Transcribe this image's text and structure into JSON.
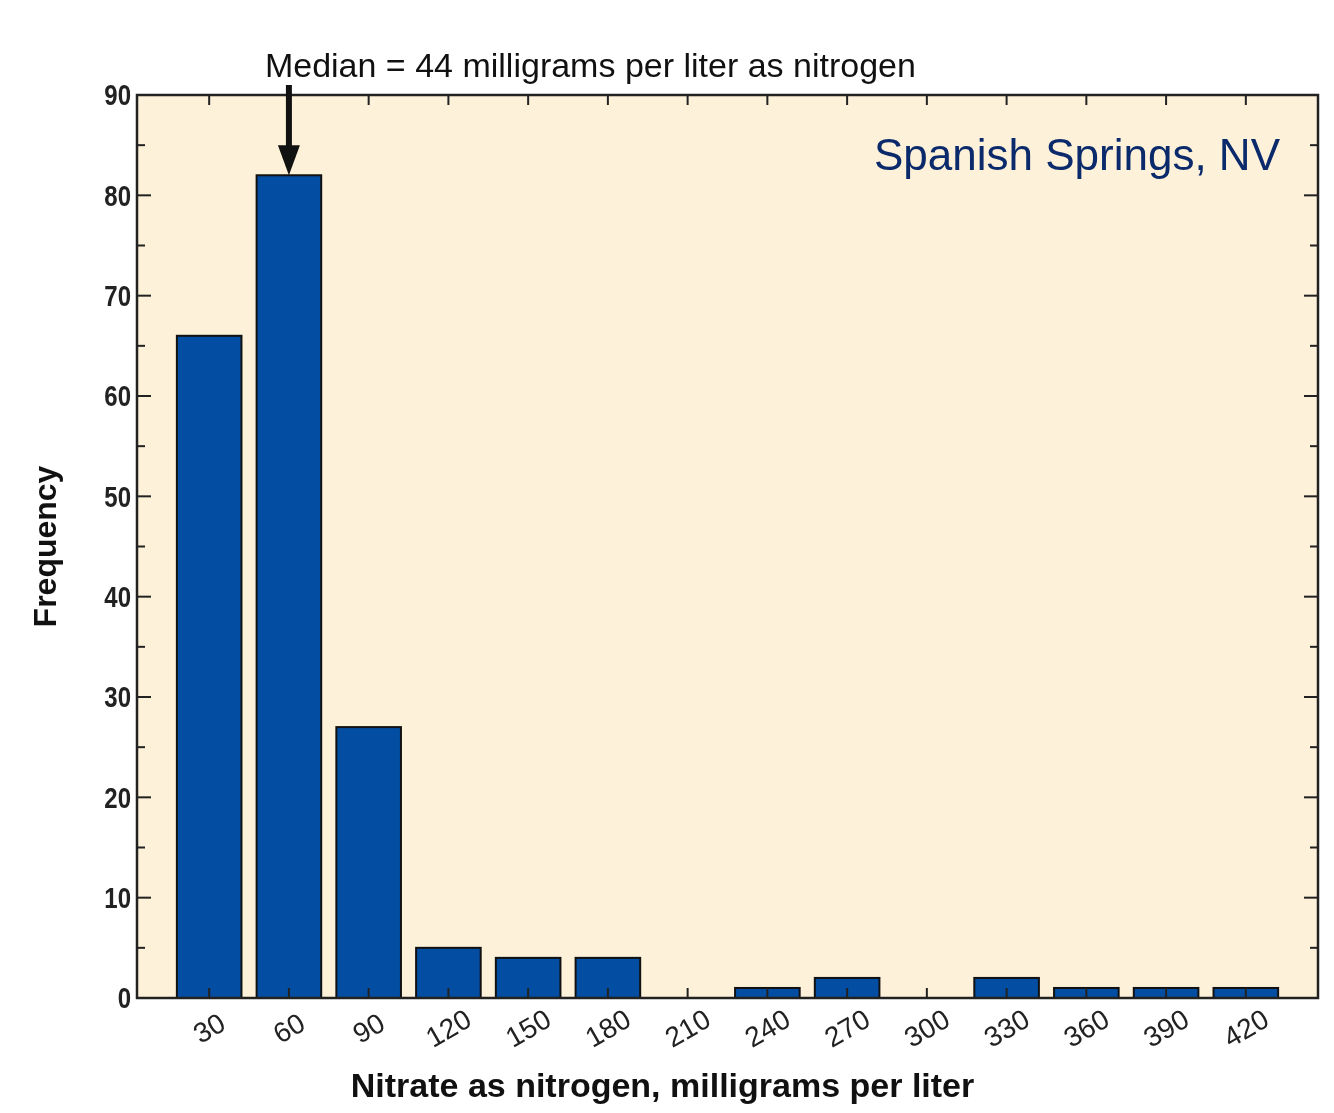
{
  "chart_data": {
    "type": "bar",
    "categories": [
      "30",
      "60",
      "90",
      "120",
      "150",
      "180",
      "210",
      "240",
      "270",
      "300",
      "330",
      "360",
      "390",
      "420"
    ],
    "values": [
      66,
      82,
      27,
      5,
      4,
      4,
      0,
      1,
      2,
      0,
      2,
      1,
      1,
      1
    ],
    "color": "#034ea2",
    "xlabel": "Nitrate as nitrogen, milligrams per liter",
    "ylabel": "Frequency",
    "ylim": [
      0,
      90
    ],
    "yticks": [
      0,
      {
        "value": 5,
        "label": null
      },
      10,
      {
        "value": 15,
        "label": null
      },
      20,
      {
        "value": 25,
        "label": null
      },
      30,
      {
        "value": 35,
        "label": null
      },
      40,
      {
        "value": 45,
        "label": null
      },
      50,
      {
        "value": 55,
        "label": null
      },
      60,
      {
        "value": 65,
        "label": null
      },
      70,
      {
        "value": 75,
        "label": null
      },
      80,
      {
        "value": 85,
        "label": null
      },
      90
    ],
    "annotations": [
      {
        "text": "Median = 44 milligrams per liter as nitrogen",
        "x": "60",
        "y": 82
      },
      "Spanish Springs, NV"
    ],
    "grid": false
  }
}
